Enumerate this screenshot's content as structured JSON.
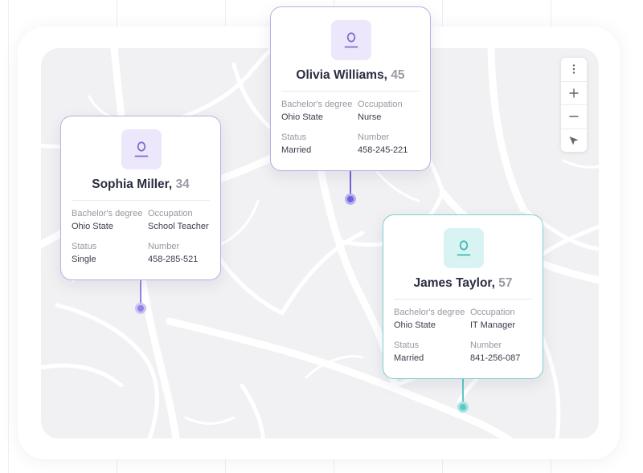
{
  "map": {
    "controls": [
      {
        "name": "more-options-button",
        "icon": "more-vertical-icon"
      },
      {
        "name": "zoom-in-button",
        "icon": "plus-icon"
      },
      {
        "name": "zoom-out-button",
        "icon": "minus-icon"
      },
      {
        "name": "locate-button",
        "icon": "navigation-arrow-icon"
      }
    ]
  },
  "colors": {
    "purple_accent": "#6f63dd",
    "purple_border": "#b9aee6",
    "teal_accent": "#5dc9c3",
    "teal_border": "#79d1cd"
  },
  "people": {
    "olivia": {
      "name": "Olivia Williams,",
      "age": "45",
      "theme": "purple",
      "education_label": "Bachelor's degree",
      "education": "Ohio State",
      "occupation_label": "Occupation",
      "occupation": "Nurse",
      "status_label": "Status",
      "status": "Married",
      "number_label": "Number",
      "number": "458-245-221"
    },
    "sophia": {
      "name": "Sophia Miller,",
      "age": "34",
      "theme": "purple",
      "education_label": "Bachelor's degree",
      "education": "Ohio State",
      "occupation_label": "Occupation",
      "occupation": "School Teacher",
      "status_label": "Status",
      "status": "Single",
      "number_label": "Number",
      "number": "458-285-521"
    },
    "james": {
      "name": "James Taylor,",
      "age": "57",
      "theme": "teal",
      "education_label": "Bachelor's degree",
      "education": "Ohio State",
      "occupation_label": "Occupation",
      "occupation": "IT Manager",
      "status_label": "Status",
      "status": "Married",
      "number_label": "Number",
      "number": "841-256-087"
    }
  }
}
